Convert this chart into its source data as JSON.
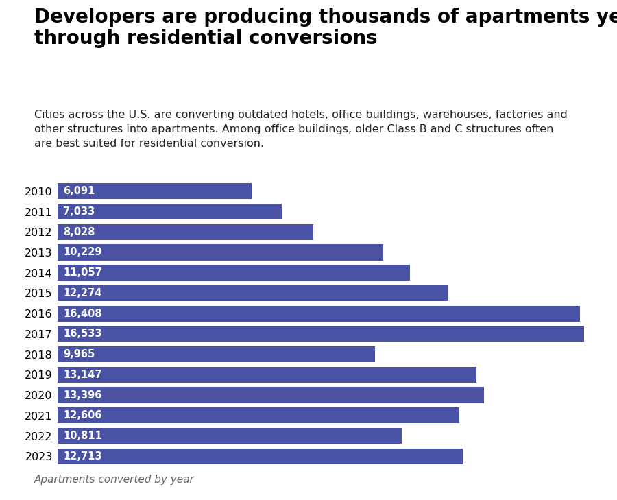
{
  "title": "Developers are producing thousands of apartments yearly\nthrough residential conversions",
  "subtitle": "Cities across the U.S. are converting outdated hotels, office buildings, warehouses, factories and\nother structures into apartments. Among office buildings, older Class B and C structures often\nare best suited for residential conversion.",
  "footnote": "Apartments converted by year",
  "years": [
    2010,
    2011,
    2012,
    2013,
    2014,
    2015,
    2016,
    2017,
    2018,
    2019,
    2020,
    2021,
    2022,
    2023
  ],
  "values": [
    6091,
    7033,
    8028,
    10229,
    11057,
    12274,
    16408,
    16533,
    9965,
    13147,
    13396,
    12606,
    10811,
    12713
  ],
  "bar_color": "#4a52a3",
  "label_color": "#ffffff",
  "title_color": "#000000",
  "subtitle_color": "#222222",
  "footnote_color": "#666666",
  "background_color": "#ffffff",
  "xlim_max": 17000,
  "title_fontsize": 20,
  "subtitle_fontsize": 11.5,
  "label_fontsize": 10.5,
  "year_fontsize": 11.5,
  "footnote_fontsize": 11,
  "bar_height": 0.78
}
